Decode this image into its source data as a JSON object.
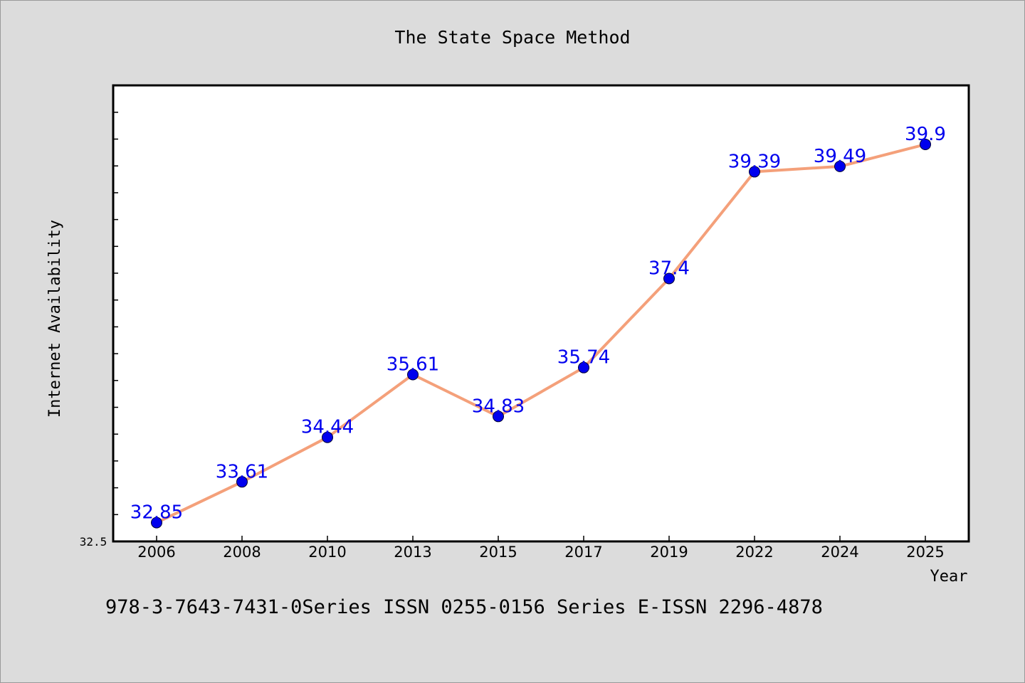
{
  "chart_data": {
    "type": "line",
    "title": "The State Space Method",
    "xlabel": "Year",
    "ylabel": "Internet Availability",
    "categories": [
      "2006",
      "2008",
      "2010",
      "2013",
      "2015",
      "2017",
      "2019",
      "2022",
      "2024",
      "2025"
    ],
    "series": [
      {
        "values": [
          32.85,
          33.61,
          34.44,
          35.61,
          34.83,
          35.74,
          37.4,
          39.39,
          39.49,
          39.9
        ],
        "data_labels": [
          "32.85",
          "33.61",
          "34.44",
          "35.61",
          "34.83",
          "35.74",
          "37.4",
          "39.39",
          "39.49",
          "39.9"
        ],
        "line_color": "#f4a07a",
        "marker_color": "#0000ee"
      }
    ],
    "y_tick_label": "32.5",
    "ylim": [
      32.5,
      41.0
    ],
    "grid": false,
    "legend": "none",
    "footer": "978-3-7643-7431-0Series ISSN 0255-0156 Series E-ISSN 2296-4878",
    "colors": {
      "background": "#dcdcdc",
      "plot_background": "#ffffff",
      "label_color": "#0000ee"
    }
  }
}
